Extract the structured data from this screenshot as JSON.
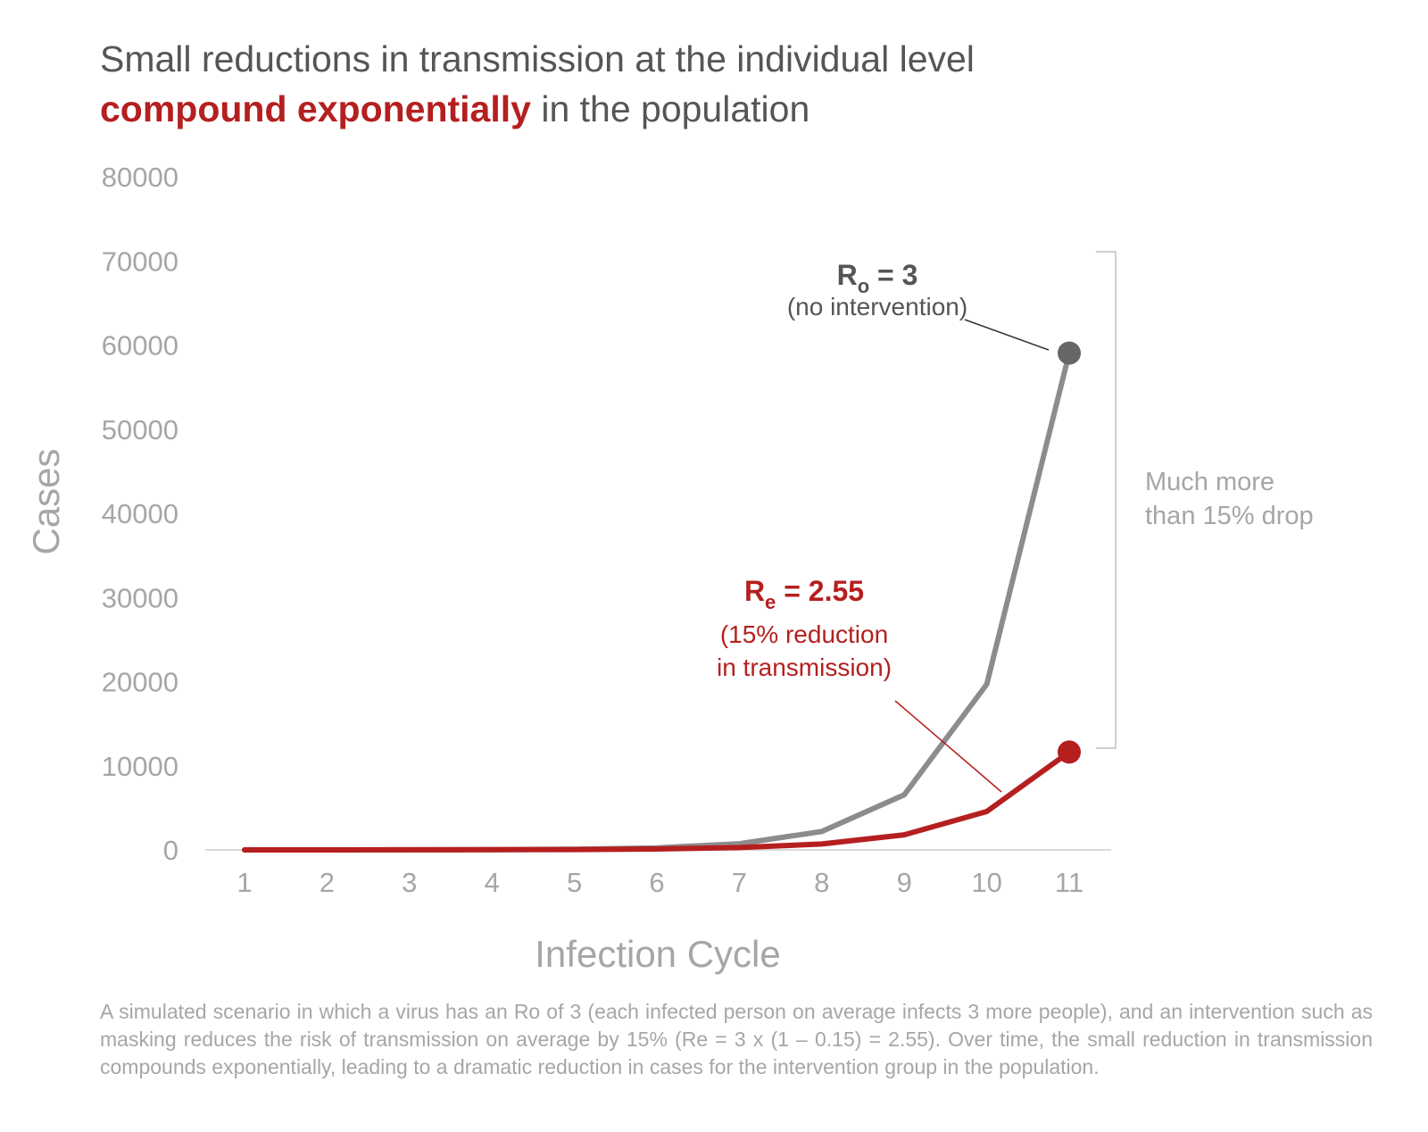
{
  "title": {
    "line1": "Small reductions in transmission at the individual level",
    "line2_emphasis": "compound exponentially",
    "line2_rest": " in the population"
  },
  "chart_data": {
    "type": "line",
    "title": "Small reductions in transmission at the individual level compound exponentially in the population",
    "xlabel": "Infection Cycle",
    "ylabel": "Cases",
    "x": [
      1,
      2,
      3,
      4,
      5,
      6,
      7,
      8,
      9,
      10,
      11
    ],
    "yticks": [
      0,
      10000,
      20000,
      30000,
      40000,
      50000,
      60000,
      70000,
      80000
    ],
    "ylim": [
      0,
      80000
    ],
    "grid": false,
    "series": [
      {
        "name": "Ro = 3 (no intervention)",
        "color": "#8c8c8c",
        "endpoint_color": "#666666",
        "values": [
          1,
          3,
          9,
          27,
          81,
          243,
          729,
          2187,
          6561,
          19683,
          59049
        ]
      },
      {
        "name": "Re = 2.55 (15% reduction in transmission)",
        "color": "#b51f1f",
        "endpoint_color": "#b51f1f",
        "values": [
          1,
          2.55,
          6.5,
          16.6,
          42.3,
          107.8,
          275,
          701,
          1788,
          4560,
          11628
        ]
      }
    ],
    "annotations": {
      "ro": {
        "main": "R",
        "sub": "o",
        "value": " = 3",
        "note": "(no intervention)"
      },
      "re": {
        "main": "R",
        "sub": "e",
        "value": " = 2.55",
        "note1": "(15% reduction",
        "note2": "in transmission)"
      },
      "bracket_line1": "Much more",
      "bracket_line2": "than 15% drop"
    }
  },
  "caption": "A simulated scenario in which a virus has an Ro of 3 (each infected person on average infects 3 more people), and an intervention such as masking reduces the risk of transmission on average by 15%  (Re = 3 x (1 – 0.15) = 2.55). Over time, the small reduction in transmission compounds exponentially, leading to a dramatic reduction in cases for the intervention group in the population.",
  "colors": {
    "accent_red": "#b51f1f",
    "text_gray": "#555555",
    "axis_gray": "#a6a6a6"
  }
}
